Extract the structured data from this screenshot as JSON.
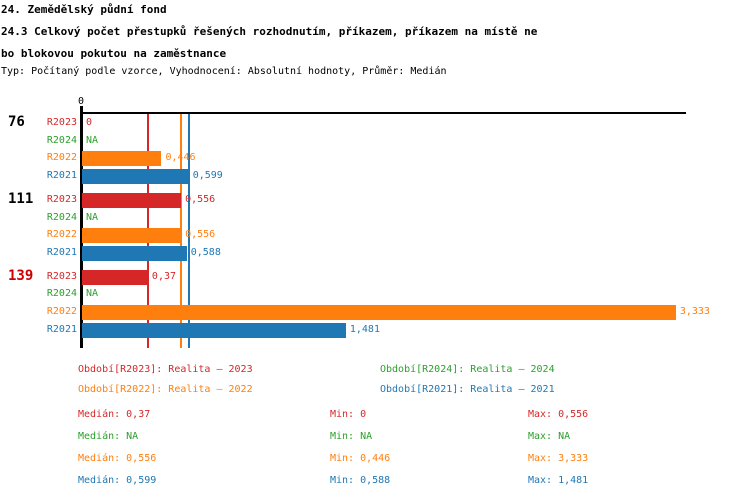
{
  "header": {
    "title_line1": "24. Zemědělský půdní fond",
    "title_line2": "24.3 Celkový počet přestupků řešených rozhodnutím, příkazem, příkazem na místě ne",
    "title_line3": "bo blokovou pokutou na zaměstnance",
    "meta_line": "Typ: Počítaný podle vzorce, Vyhodnocení: Absolutní hodnoty, Průměr: Medián"
  },
  "colors": {
    "series": {
      "R2023": "#d62728",
      "R2024": "#2ca02c",
      "R2022": "#ff7f0e",
      "R2021": "#1f77b4"
    },
    "axis": "#000000",
    "group_label_default": "#000000",
    "group_label_highlight": "#cc0000"
  },
  "chart_data": {
    "type": "bar",
    "orientation": "horizontal",
    "title": "24.3 Celkový počet přestupků řešených rozhodnutím, příkazem, příkazem na místě nebo blokovou pokutou na zaměstnance",
    "xlabel": "",
    "ylabel": "",
    "xlim": [
      0,
      3.39
    ],
    "x_axis_tick_label": "0",
    "grid": "median-lines-only",
    "groups": [
      {
        "label": "76",
        "label_highlight": false,
        "bars": [
          {
            "series": "R2023",
            "value": 0,
            "display": "0"
          },
          {
            "series": "R2024",
            "value": null,
            "display": "NA"
          },
          {
            "series": "R2022",
            "value": 0.446,
            "display": "0,446"
          },
          {
            "series": "R2021",
            "value": 0.599,
            "display": "0,599"
          }
        ]
      },
      {
        "label": "111",
        "label_highlight": false,
        "bars": [
          {
            "series": "R2023",
            "value": 0.556,
            "display": "0,556"
          },
          {
            "series": "R2024",
            "value": null,
            "display": "NA"
          },
          {
            "series": "R2022",
            "value": 0.556,
            "display": "0,556"
          },
          {
            "series": "R2021",
            "value": 0.588,
            "display": "0,588"
          }
        ]
      },
      {
        "label": "139",
        "label_highlight": true,
        "bars": [
          {
            "series": "R2023",
            "value": 0.37,
            "display": "0,37"
          },
          {
            "series": "R2024",
            "value": null,
            "display": "NA"
          },
          {
            "series": "R2022",
            "value": 3.333,
            "display": "3,333"
          },
          {
            "series": "R2021",
            "value": 1.481,
            "display": "1,481"
          }
        ]
      }
    ],
    "median_lines": [
      {
        "series": "R2023",
        "value": 0.37
      },
      {
        "series": "R2022",
        "value": 0.556
      },
      {
        "series": "R2021",
        "value": 0.599
      }
    ]
  },
  "legend": {
    "items": [
      {
        "series": "R2023",
        "label": "Období[R2023]: Realita – 2023",
        "col": 0,
        "row": 0
      },
      {
        "series": "R2024",
        "label": "Období[R2024]: Realita – 2024",
        "col": 1,
        "row": 0
      },
      {
        "series": "R2022",
        "label": "Období[R2022]: Realita – 2022",
        "col": 0,
        "row": 1
      },
      {
        "series": "R2021",
        "label": "Období[R2021]: Realita – 2021",
        "col": 1,
        "row": 1
      }
    ]
  },
  "stats": {
    "column_labels": {
      "median": "Medián:",
      "min": "Min:",
      "max": "Max:"
    },
    "rows": [
      {
        "series": "R2023",
        "median": "0,37",
        "min": "0",
        "max": "0,556"
      },
      {
        "series": "R2024",
        "median": "NA",
        "min": "NA",
        "max": "NA"
      },
      {
        "series": "R2022",
        "median": "0,556",
        "min": "0,446",
        "max": "3,333"
      },
      {
        "series": "R2021",
        "median": "0,599",
        "min": "0,588",
        "max": "1,481"
      }
    ]
  }
}
